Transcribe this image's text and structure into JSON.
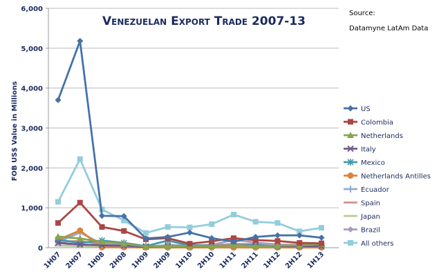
{
  "chart_data": {
    "type": "line",
    "title": "Venezuelan Export Trade 2007-13",
    "source_label": "Source:",
    "source_name": "Datamyne LatAm Data",
    "ylabel": "FOB US$ Value in Millions",
    "xlabel": "",
    "ylim": [
      0,
      6000
    ],
    "yticks": [
      "0",
      "1,000",
      "2,000",
      "3,000",
      "4,000",
      "5,000",
      "6,000"
    ],
    "grid": true,
    "legend_position": "right",
    "categories": [
      "1H07",
      "2H07",
      "1H08",
      "2H08",
      "1H09",
      "2H09",
      "1H10",
      "2H10",
      "1H11",
      "2H11",
      "1H12",
      "2H12",
      "1H13"
    ],
    "series": [
      {
        "name": "US",
        "color": "#4572A7",
        "marker": "diamond",
        "values": [
          3700,
          5180,
          800,
          790,
          230,
          270,
          380,
          240,
          150,
          270,
          310,
          310,
          250
        ]
      },
      {
        "name": "Colombia",
        "color": "#AA4643",
        "marker": "square",
        "values": [
          620,
          1130,
          520,
          420,
          210,
          240,
          100,
          160,
          240,
          190,
          170,
          120,
          110
        ]
      },
      {
        "name": "Netherlands",
        "color": "#89A54E",
        "marker": "triangle",
        "values": [
          280,
          230,
          150,
          100,
          30,
          40,
          40,
          40,
          60,
          40,
          50,
          60,
          90
        ]
      },
      {
        "name": "Italy",
        "color": "#71588F",
        "marker": "x",
        "values": [
          120,
          80,
          60,
          50,
          20,
          40,
          30,
          40,
          60,
          50,
          40,
          40,
          40
        ]
      },
      {
        "name": "Mexico",
        "color": "#4198AF",
        "marker": "asterisk",
        "values": [
          200,
          120,
          180,
          120,
          40,
          180,
          60,
          50,
          60,
          70,
          30,
          40,
          40
        ]
      },
      {
        "name": "Netherlands Antilles",
        "color": "#DB843D",
        "marker": "circle",
        "values": [
          200,
          430,
          10,
          10,
          5,
          5,
          5,
          5,
          5,
          5,
          5,
          5,
          5
        ]
      },
      {
        "name": "Ecuador",
        "color": "#93A9CF",
        "marker": "plus",
        "values": [
          150,
          380,
          100,
          60,
          30,
          60,
          40,
          50,
          70,
          80,
          50,
          50,
          50
        ]
      },
      {
        "name": "Spain",
        "color": "#D19392",
        "marker": "dash",
        "values": [
          150,
          170,
          80,
          60,
          40,
          50,
          40,
          60,
          100,
          90,
          60,
          50,
          50
        ]
      },
      {
        "name": "Japan",
        "color": "#B9CD96",
        "marker": "dash",
        "values": [
          50,
          40,
          30,
          30,
          10,
          20,
          20,
          20,
          20,
          20,
          20,
          20,
          20
        ]
      },
      {
        "name": "Brazil",
        "color": "#A99BBD",
        "marker": "diamond",
        "values": [
          120,
          60,
          70,
          60,
          20,
          70,
          60,
          70,
          200,
          130,
          80,
          70,
          70
        ]
      },
      {
        "name": "All others",
        "color": "#92CDDC",
        "marker": "square",
        "values": [
          1150,
          2220,
          960,
          680,
          370,
          520,
          510,
          590,
          830,
          650,
          620,
          410,
          500
        ]
      }
    ]
  }
}
